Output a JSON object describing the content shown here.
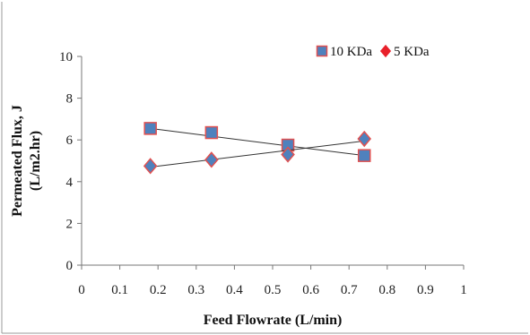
{
  "chart_data": {
    "type": "scatter",
    "xlabel": "Feed Flowrate (L/min)",
    "ylabel_lines": [
      "Permeated Flux, J",
      "(L/m2.hr)"
    ],
    "xlim": [
      0,
      1
    ],
    "ylim": [
      0,
      10
    ],
    "x_ticks": [
      0,
      0.1,
      0.2,
      0.3,
      0.4,
      0.5,
      0.6,
      0.7,
      0.8,
      0.9,
      1
    ],
    "x_tick_labels": [
      "0",
      "0.1",
      "0.2",
      "0.3",
      "0.4",
      "0.5",
      "0.6",
      "0.7",
      "0.8",
      "0.9",
      "1"
    ],
    "y_ticks": [
      0,
      2,
      4,
      6,
      8,
      10
    ],
    "y_tick_labels": [
      "0",
      "2",
      "4",
      "6",
      "8",
      "10"
    ],
    "grid": false,
    "legend_position": "top-right",
    "series": [
      {
        "name": "10 KDa",
        "marker": "square",
        "color": "#4F81BD",
        "edge_color": "#E05050",
        "x": [
          0.18,
          0.34,
          0.54,
          0.74
        ],
        "y": [
          6.55,
          6.35,
          5.75,
          5.25
        ],
        "trendline": {
          "x": [
            0.18,
            0.74
          ],
          "y": [
            6.55,
            5.25
          ]
        }
      },
      {
        "name": "5 KDa",
        "marker": "diamond",
        "color": "#4F81BD",
        "edge_color": "#E05050",
        "legend_color": "#E8202A",
        "x": [
          0.18,
          0.34,
          0.54,
          0.74
        ],
        "y": [
          4.75,
          5.05,
          5.3,
          6.05
        ],
        "trendline": {
          "x": [
            0.18,
            0.74
          ],
          "y": [
            4.7,
            5.95
          ]
        }
      }
    ]
  }
}
